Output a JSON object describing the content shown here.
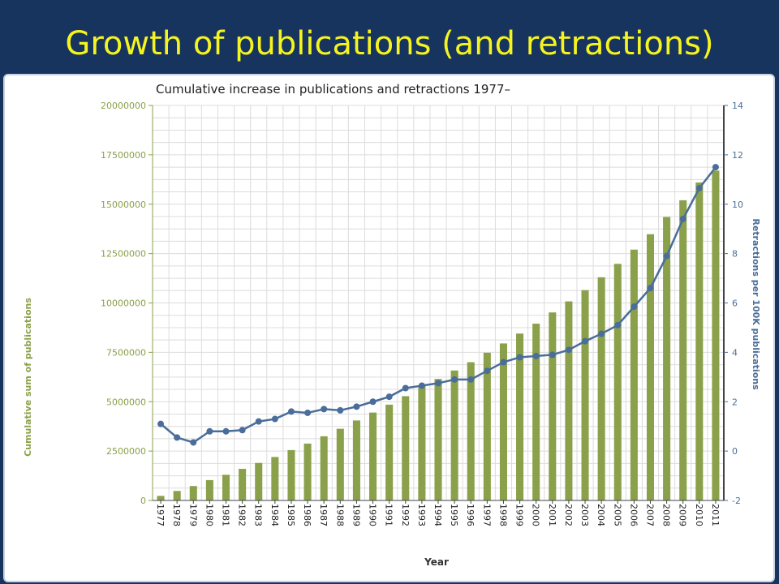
{
  "slide": {
    "title": "Growth of publications (and retractions)"
  },
  "chart_data": {
    "type": "bar",
    "title": "Cumulative increase in publications and retractions 1977–",
    "xlabel": "Year",
    "ylabel_left": "Cumulative sum of publications",
    "ylabel_right": "Retractions per 100K publications",
    "ylim_left": [
      0,
      20000000
    ],
    "ylim_right": [
      -2,
      14
    ],
    "yticks_left": [
      "0",
      "2500000",
      "5000000",
      "7500000",
      "10000000",
      "12500000",
      "15000000",
      "17500000",
      "20000000"
    ],
    "yticks_right": [
      "-2",
      "0",
      "2",
      "4",
      "6",
      "8",
      "10",
      "12",
      "14"
    ],
    "grid": true,
    "categories": [
      "1977",
      "1978",
      "1979",
      "1980",
      "1981",
      "1982",
      "1983",
      "1984",
      "1985",
      "1986",
      "1987",
      "1988",
      "1989",
      "1990",
      "1991",
      "1992",
      "1993",
      "1994",
      "1995",
      "1996",
      "1997",
      "1998",
      "1999",
      "2000",
      "2001",
      "2002",
      "2003",
      "2004",
      "2005",
      "2006",
      "2007",
      "2008",
      "2009",
      "2010",
      "2011"
    ],
    "series": [
      {
        "type": "bar",
        "axis": "left",
        "color": "#8aa04a",
        "values": [
          230000,
          480000,
          730000,
          1030000,
          1300000,
          1600000,
          1900000,
          2200000,
          2550000,
          2880000,
          3250000,
          3630000,
          4050000,
          4450000,
          4850000,
          5280000,
          5800000,
          6150000,
          6580000,
          7000000,
          7480000,
          7950000,
          8450000,
          8950000,
          9520000,
          10080000,
          10650000,
          11300000,
          11980000,
          12700000,
          13480000,
          14350000,
          15200000,
          16100000,
          16700000
        ]
      },
      {
        "type": "line",
        "axis": "right",
        "color": "#4a6d9a",
        "values": [
          1.1,
          0.55,
          0.35,
          0.8,
          0.8,
          0.85,
          1.2,
          1.3,
          1.6,
          1.55,
          1.7,
          1.65,
          1.8,
          2.0,
          2.2,
          2.55,
          2.65,
          2.75,
          2.9,
          2.9,
          3.25,
          3.6,
          3.8,
          3.85,
          3.9,
          4.1,
          4.45,
          4.75,
          5.1,
          5.85,
          6.6,
          7.9,
          9.4,
          10.65,
          11.5
        ]
      }
    ]
  }
}
